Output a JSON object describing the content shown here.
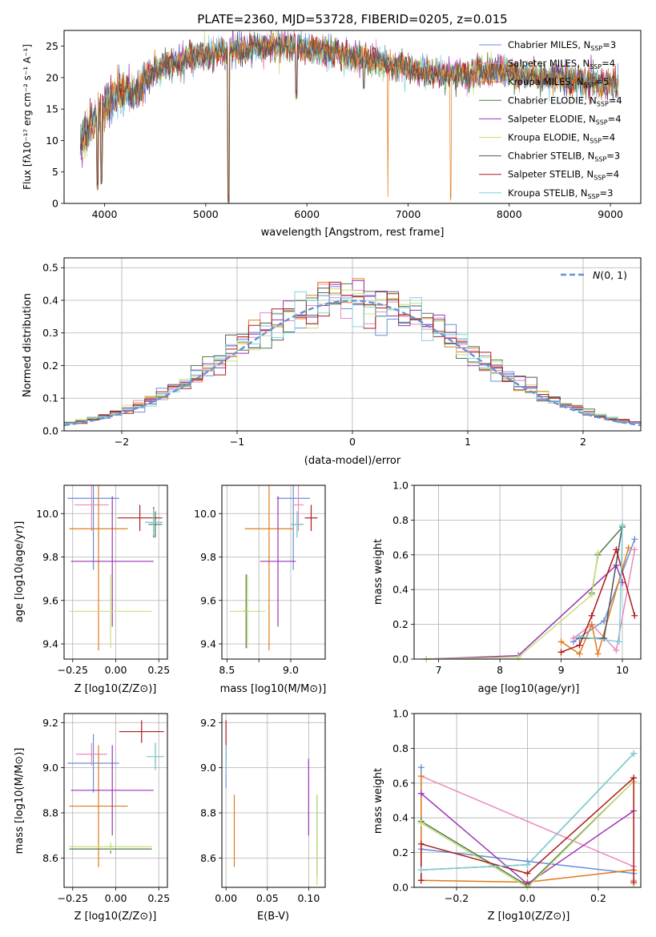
{
  "colors": {
    "Chabrier MILES": "#6a8fd8",
    "Salpeter MILES": "#e88ac0",
    "Kroupa MILES": "#e07b1a",
    "Chabrier ELODIE": "#4f7a4a",
    "Salpeter ELODIE": "#9a35b5",
    "Kroupa ELODIE": "#c8e07a",
    "Chabrier STELIB": "#555555",
    "Salpeter STELIB": "#b01a1a",
    "Kroupa STELIB": "#7dd3dc"
  },
  "chart_data": [
    {
      "id": "spectrum",
      "type": "line",
      "title": "PLATE=2360, MJD=53728, FIBERID=0205, z=0.015",
      "xlabel": "wavelength [Angstrom, rest frame]",
      "ylabel": "Flux [fλ10⁻¹⁷ erg cm⁻² s⁻¹ A⁻¹]",
      "xlim": [
        3600,
        9300
      ],
      "ylim": [
        0,
        27.5
      ],
      "xticks": [
        4000,
        5000,
        6000,
        7000,
        8000,
        9000
      ],
      "yticks": [
        0,
        5,
        10,
        15,
        20,
        25
      ],
      "grid": false,
      "legend_position": "top-right",
      "legend": [
        {
          "name": "Chabrier MILES",
          "suffix": ", N",
          "sub": "SSP",
          "count": "=3"
        },
        {
          "name": "Salpeter MILES",
          "suffix": ", N",
          "sub": "SSP",
          "count": "=4"
        },
        {
          "name": "Kroupa MILES",
          "suffix": ", N",
          "sub": "SSP",
          "count": "=5"
        },
        {
          "name": "Chabrier ELODIE",
          "suffix": ", N",
          "sub": "SSP",
          "count": "=4"
        },
        {
          "name": "Salpeter ELODIE",
          "suffix": ", N",
          "sub": "SSP",
          "count": "=4"
        },
        {
          "name": "Kroupa ELODIE",
          "suffix": ", N",
          "sub": "SSP",
          "count": "=4"
        },
        {
          "name": "Chabrier STELIB",
          "suffix": ", N",
          "sub": "SSP",
          "count": "=3"
        },
        {
          "name": "Salpeter STELIB",
          "suffix": ", N",
          "sub": "SSP",
          "count": "=4"
        },
        {
          "name": "Kroupa STELIB",
          "suffix": ", N",
          "sub": "SSP",
          "count": "=3"
        }
      ],
      "continuum": {
        "x": [
          3750,
          3800,
          3900,
          4000,
          4100,
          4200,
          4300,
          4400,
          4500,
          4600,
          4700,
          4800,
          4900,
          5000,
          5100,
          5200,
          5300,
          5400,
          5500,
          5600,
          5700,
          5800,
          5900,
          6000,
          6100,
          6200,
          6300,
          6400,
          6500,
          6600,
          6700,
          6800,
          6900,
          7000,
          7100,
          7200,
          7300,
          7400,
          7500,
          7600,
          7700,
          7800,
          7900,
          8000,
          8100,
          8200,
          8300,
          8400,
          8500,
          8600,
          8700,
          8800,
          8900,
          9000,
          9100
        ],
        "y": [
          9,
          11,
          13,
          15,
          17,
          18,
          17,
          19.5,
          21,
          22,
          22.5,
          23,
          23.5,
          23.5,
          24,
          24,
          24.5,
          24.5,
          25,
          25,
          25,
          25,
          25,
          24.5,
          24.5,
          24,
          24,
          23.5,
          23,
          23,
          22.5,
          22,
          22,
          21.5,
          21,
          21,
          20.5,
          20.5,
          20.5,
          20.5,
          21,
          21,
          21,
          21,
          20.5,
          20.5,
          20,
          20,
          20,
          19.5,
          19.5,
          19.5,
          19,
          19,
          19
        ]
      },
      "dips": [
        {
          "x": 3930,
          "y": 2
        },
        {
          "x": 3970,
          "y": 3
        },
        {
          "x": 5225,
          "y": 0
        },
        {
          "x": 5895,
          "y": 16.5
        },
        {
          "x": 6563,
          "y": 18
        },
        {
          "x": 6800,
          "y": 0
        },
        {
          "x": 7420,
          "y": 0
        }
      ]
    },
    {
      "id": "residuals",
      "type": "line",
      "xlabel": "(data-model)/error",
      "ylabel": "Normed distribution",
      "xlim": [
        -2.5,
        2.5
      ],
      "ylim": [
        0,
        0.53
      ],
      "xticks": [
        -2,
        -1,
        0,
        1,
        2
      ],
      "yticks": [
        0.0,
        0.1,
        0.2,
        0.3,
        0.4,
        0.5
      ],
      "grid": true,
      "legend_position": "top-right",
      "legend": [
        {
          "name": "N(0, 1)"
        }
      ],
      "reference_curve": "standard normal density"
    },
    {
      "id": "age-vs-Z",
      "type": "scatter",
      "xlabel": "Z [log10(Z/Z⊙)]",
      "ylabel": "age [log10(age/yr)]",
      "xlim": [
        -0.3,
        0.3
      ],
      "ylim": [
        9.33,
        10.13
      ],
      "xticks": [
        -0.25,
        0.0,
        0.25
      ],
      "yticks": [
        9.4,
        9.6,
        9.8,
        10.0
      ],
      "grid": true,
      "points": [
        {
          "series": "Chabrier MILES",
          "x": -0.13,
          "xerr": 0.15,
          "y": 10.07,
          "yerr": 0.33
        },
        {
          "series": "Salpeter MILES",
          "x": -0.14,
          "xerr": 0.1,
          "y": 10.04,
          "yerr": 0.12
        },
        {
          "series": "Kroupa MILES",
          "x": -0.1,
          "xerr": 0.17,
          "y": 9.93,
          "yerr": 0.56
        },
        {
          "series": "Chabrier ELODIE",
          "x": 0.23,
          "xerr": 0.04,
          "y": 9.95,
          "yerr": 0.06
        },
        {
          "series": "Salpeter ELODIE",
          "x": -0.02,
          "xerr": 0.24,
          "y": 9.78,
          "yerr": 0.3
        },
        {
          "series": "Kroupa ELODIE",
          "x": -0.03,
          "xerr": 0.24,
          "y": 9.55,
          "yerr": 0.17
        },
        {
          "series": "Chabrier STELIB",
          "x": 0.22,
          "xerr": 0.05,
          "y": 9.96,
          "yerr": 0.07
        },
        {
          "series": "Salpeter STELIB",
          "x": 0.14,
          "xerr": 0.13,
          "y": 9.98,
          "yerr": 0.06
        },
        {
          "series": "Kroupa STELIB",
          "x": 0.22,
          "xerr": 0.05,
          "y": 9.96,
          "yerr": 0.06
        }
      ]
    },
    {
      "id": "age-vs-mass",
      "type": "scatter",
      "xlabel": "mass [log10(M/M⊙)]",
      "ylabel": "",
      "xlim": [
        8.46,
        9.27
      ],
      "ylim": [
        9.33,
        10.13
      ],
      "xticks": [
        8.5,
        8.75,
        9.0
      ],
      "xticklabels": [
        "8.5",
        "",
        "9.0"
      ],
      "yticks": [
        9.4,
        9.6,
        9.8,
        10.0
      ],
      "grid": true,
      "points": [
        {
          "series": "Chabrier MILES",
          "x": 9.02,
          "xerr": 0.13,
          "y": 10.07,
          "yerr": 0.33
        },
        {
          "series": "Salpeter MILES",
          "x": 9.06,
          "xerr": 0.04,
          "y": 10.04,
          "yerr": 0.12
        },
        {
          "series": "Kroupa MILES",
          "x": 8.83,
          "xerr": 0.19,
          "y": 9.93,
          "yerr": 0.56
        },
        {
          "series": "Chabrier ELODIE",
          "x": 8.65,
          "xerr": 0.02,
          "y": 9.55,
          "yerr": 0.17
        },
        {
          "series": "Salpeter ELODIE",
          "x": 8.9,
          "xerr": 0.14,
          "y": 9.78,
          "yerr": 0.3
        },
        {
          "series": "Kroupa ELODIE",
          "x": 8.66,
          "xerr": 0.14,
          "y": 9.55,
          "yerr": 0.17
        },
        {
          "series": "Chabrier STELIB",
          "x": 9.05,
          "xerr": 0.05,
          "y": 9.95,
          "yerr": 0.06
        },
        {
          "series": "Salpeter STELIB",
          "x": 9.16,
          "xerr": 0.05,
          "y": 9.98,
          "yerr": 0.06
        },
        {
          "series": "Kroupa STELIB",
          "x": 9.05,
          "xerr": 0.05,
          "y": 9.95,
          "yerr": 0.06
        }
      ]
    },
    {
      "id": "weight-vs-age",
      "type": "line",
      "xlabel": "age [log10(age/yr)]",
      "ylabel": "mass weight",
      "xlim": [
        6.6,
        10.3
      ],
      "ylim": [
        0,
        1.0
      ],
      "xticks": [
        7,
        8,
        9,
        10
      ],
      "yticks": [
        0.0,
        0.2,
        0.4,
        0.6,
        0.8,
        1.0
      ],
      "grid": true,
      "series": [
        {
          "name": "Chabrier MILES",
          "x": [
            9.2,
            9.7,
            10.2
          ],
          "y": [
            0.1,
            0.22,
            0.69
          ]
        },
        {
          "name": "Salpeter MILES",
          "x": [
            9.2,
            9.5,
            9.9,
            10.2
          ],
          "y": [
            0.12,
            0.2,
            0.05,
            0.63
          ]
        },
        {
          "name": "Kroupa MILES",
          "x": [
            9.0,
            9.3,
            9.5,
            9.6,
            10.1
          ],
          "y": [
            0.1,
            0.03,
            0.2,
            0.03,
            0.64
          ]
        },
        {
          "name": "Chabrier ELODIE",
          "x": [
            9.5,
            9.6,
            10.0
          ],
          "y": [
            0.38,
            0.6,
            0.76
          ]
        },
        {
          "name": "Salpeter ELODIE",
          "x": [
            6.8,
            8.3,
            9.9,
            10.0
          ],
          "y": [
            0.0,
            0.02,
            0.54,
            0.44
          ]
        },
        {
          "name": "Kroupa ELODIE",
          "x": [
            6.8,
            8.3,
            9.5,
            9.6
          ],
          "y": [
            0.0,
            0.01,
            0.37,
            0.61
          ]
        },
        {
          "name": "Chabrier STELIB",
          "x": [
            9.3,
            9.7,
            10.0
          ],
          "y": [
            0.12,
            0.12,
            0.77
          ]
        },
        {
          "name": "Salpeter STELIB",
          "x": [
            9.0,
            9.3,
            9.5,
            9.9,
            10.2
          ],
          "y": [
            0.04,
            0.08,
            0.25,
            0.63,
            0.25
          ]
        },
        {
          "name": "Kroupa STELIB",
          "x": [
            9.3,
            9.95,
            10.0
          ],
          "y": [
            0.13,
            0.1,
            0.77
          ]
        }
      ]
    },
    {
      "id": "mass-vs-Z",
      "type": "scatter",
      "xlabel": "Z [log10(Z/Z⊙)]",
      "ylabel": "mass [log10(M/M⊙)]",
      "xlim": [
        -0.3,
        0.3
      ],
      "ylim": [
        8.47,
        9.24
      ],
      "xticks": [
        -0.25,
        0.0,
        0.25
      ],
      "yticks": [
        8.6,
        8.8,
        9.0,
        9.2
      ],
      "grid": true,
      "points": [
        {
          "series": "Chabrier MILES",
          "x": -0.13,
          "xerr": 0.15,
          "y": 9.02,
          "yerr": 0.13
        },
        {
          "series": "Salpeter MILES",
          "x": -0.14,
          "xerr": 0.09,
          "y": 9.06,
          "yerr": 0.05
        },
        {
          "series": "Kroupa MILES",
          "x": -0.1,
          "xerr": 0.17,
          "y": 8.83,
          "yerr": 0.27
        },
        {
          "series": "Chabrier ELODIE",
          "x": -0.03,
          "xerr": 0.24,
          "y": 8.64,
          "yerr": 0.02
        },
        {
          "series": "Salpeter ELODIE",
          "x": -0.02,
          "xerr": 0.24,
          "y": 8.9,
          "yerr": 0.2
        },
        {
          "series": "Kroupa ELODIE",
          "x": -0.03,
          "xerr": 0.24,
          "y": 8.65,
          "yerr": 0.02
        },
        {
          "series": "Chabrier STELIB",
          "x": 0.23,
          "xerr": 0.05,
          "y": 9.05,
          "yerr": 0.06
        },
        {
          "series": "Salpeter STELIB",
          "x": 0.15,
          "xerr": 0.13,
          "y": 9.16,
          "yerr": 0.05
        },
        {
          "series": "Kroupa STELIB",
          "x": 0.23,
          "xerr": 0.05,
          "y": 9.05,
          "yerr": 0.06
        }
      ]
    },
    {
      "id": "mass-vs-EBV",
      "type": "scatter",
      "xlabel": "E(B-V)",
      "ylabel": "",
      "xlim": [
        -0.005,
        0.12
      ],
      "ylim": [
        8.47,
        9.24
      ],
      "xticks": [
        0.0,
        0.05,
        0.1
      ],
      "xticklabels": [
        "0.00",
        "0.05",
        "0.10"
      ],
      "yticks": [
        8.6,
        8.8,
        9.0,
        9.2
      ],
      "grid": true,
      "points": [
        {
          "series": "Chabrier MILES",
          "x": 0.0,
          "y": 9.0,
          "yerr": 0.09
        },
        {
          "series": "Salpeter MILES",
          "x": 0.0,
          "y": 9.02,
          "yerr": 0.05
        },
        {
          "series": "Kroupa MILES",
          "x": 0.01,
          "y": 8.72,
          "yerr": 0.16
        },
        {
          "series": "Chabrier ELODIE",
          "x": 0.11,
          "y": 8.7,
          "yerr": 0.18
        },
        {
          "series": "Salpeter ELODIE",
          "x": 0.1,
          "y": 8.87,
          "yerr": 0.17
        },
        {
          "series": "Kroupa ELODIE",
          "x": 0.11,
          "y": 8.68,
          "yerr": 0.2
        },
        {
          "series": "Chabrier STELIB",
          "x": 0.0,
          "y": 9.04,
          "yerr": 0.06
        },
        {
          "series": "Salpeter STELIB",
          "x": 0.0,
          "y": 9.13,
          "yerr": 0.08
        },
        {
          "series": "Kroupa STELIB",
          "x": 0.0,
          "y": 9.04,
          "yerr": 0.06
        }
      ]
    },
    {
      "id": "weight-vs-Z",
      "type": "line",
      "xlabel": "Z [log10(Z/Z⊙)]",
      "ylabel": "mass weight",
      "xlim": [
        -0.32,
        0.32
      ],
      "ylim": [
        0,
        1.0
      ],
      "xticks": [
        -0.2,
        0.0,
        0.2
      ],
      "yticks": [
        0.0,
        0.2,
        0.4,
        0.6,
        0.8,
        1.0
      ],
      "grid": true,
      "series": [
        {
          "name": "Chabrier MILES",
          "x": [
            -0.3,
            -0.3,
            0.0,
            0.3
          ],
          "y": [
            0.69,
            0.22,
            0.15,
            0.08
          ]
        },
        {
          "name": "Salpeter MILES",
          "x": [
            -0.3,
            0.3,
            0.3
          ],
          "y": [
            0.64,
            0.12,
            0.04
          ]
        },
        {
          "name": "Kroupa MILES",
          "x": [
            -0.3,
            -0.3,
            0.0,
            0.3
          ],
          "y": [
            0.64,
            0.04,
            0.03,
            0.1
          ]
        },
        {
          "name": "Chabrier ELODIE",
          "x": [
            -0.3,
            0.0,
            0.3
          ],
          "y": [
            0.38,
            0.01,
            0.61
          ]
        },
        {
          "name": "Salpeter ELODIE",
          "x": [
            -0.3,
            0.0,
            0.3
          ],
          "y": [
            0.54,
            0.02,
            0.44
          ]
        },
        {
          "name": "Kroupa ELODIE",
          "x": [
            -0.3,
            0.0,
            0.3,
            0.3
          ],
          "y": [
            0.37,
            0.0,
            0.61,
            0.02
          ]
        },
        {
          "name": "Chabrier STELIB",
          "x": [
            -0.3,
            0.0,
            0.3
          ],
          "y": [
            0.1,
            0.13,
            0.77
          ]
        },
        {
          "name": "Salpeter STELIB",
          "x": [
            -0.3,
            -0.3,
            0.0,
            0.3,
            0.3
          ],
          "y": [
            0.04,
            0.25,
            0.08,
            0.63,
            0.03
          ]
        },
        {
          "name": "Kroupa STELIB",
          "x": [
            -0.3,
            0.0,
            0.3
          ],
          "y": [
            0.1,
            0.13,
            0.77
          ]
        }
      ]
    }
  ]
}
